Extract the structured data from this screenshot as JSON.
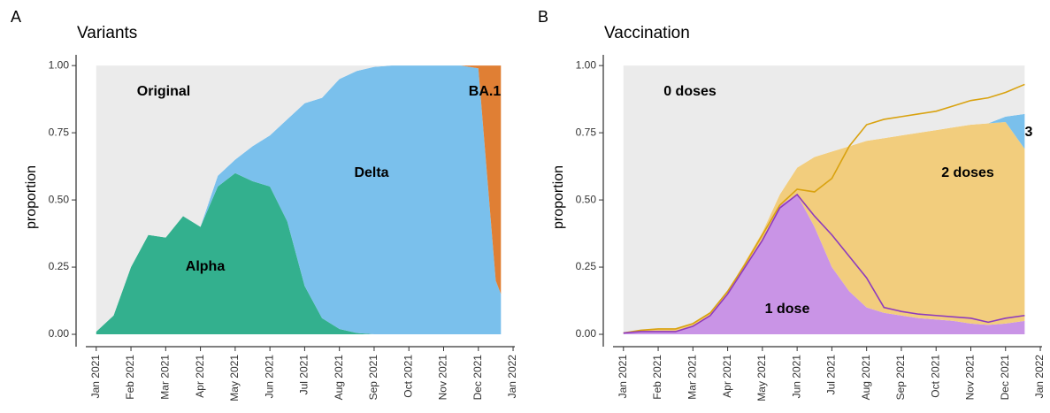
{
  "chart_data": [
    {
      "type": "area",
      "stacked": true,
      "panel": "A",
      "title": "Variants",
      "ylabel": "proportion",
      "x": [
        0,
        0.5,
        1,
        1.5,
        2,
        2.5,
        3,
        3.5,
        4,
        4.5,
        5,
        5.5,
        6,
        6.5,
        7,
        7.5,
        8,
        8.5,
        9,
        9.5,
        10,
        10.5,
        11,
        11.5,
        11.65
      ],
      "series": [
        {
          "name": "Alpha",
          "color": "#33b08e",
          "values": [
            0.01,
            0.07,
            0.25,
            0.37,
            0.36,
            0.44,
            0.4,
            0.55,
            0.6,
            0.57,
            0.55,
            0.42,
            0.18,
            0.06,
            0.02,
            0.005,
            0,
            0,
            0,
            0,
            0,
            0,
            0,
            0,
            0
          ]
        },
        {
          "name": "Delta",
          "color": "#7ac0ec",
          "values": [
            0,
            0,
            0,
            0,
            0,
            0,
            0,
            0.04,
            0.05,
            0.13,
            0.19,
            0.38,
            0.68,
            0.82,
            0.93,
            0.975,
            0.995,
            1,
            1,
            1,
            1,
            1,
            0.99,
            0.2,
            0.15
          ]
        },
        {
          "name": "BA.1",
          "color": "#e07f34",
          "values": [
            0,
            0,
            0,
            0,
            0,
            0,
            0,
            0,
            0,
            0,
            0,
            0,
            0,
            0,
            0,
            0,
            0,
            0,
            0,
            0,
            0,
            0,
            0.01,
            0.8,
            0.85
          ]
        },
        {
          "name": "Original",
          "color": "#ebebeb",
          "values": [
            0.99,
            0.93,
            0.75,
            0.63,
            0.64,
            0.56,
            0.6,
            0.41,
            0.35,
            0.3,
            0.26,
            0.2,
            0.14,
            0.12,
            0.05,
            0.02,
            0.005,
            0,
            0,
            0,
            0,
            0,
            0,
            0,
            0
          ]
        }
      ],
      "xlim": [
        -0.3,
        12.05
      ],
      "xticks": [
        {
          "value": 0,
          "label": "Jan 2021"
        },
        {
          "value": 1,
          "label": "Feb 2021"
        },
        {
          "value": 2,
          "label": "Mar 2021"
        },
        {
          "value": 3,
          "label": "Apr 2021"
        },
        {
          "value": 4,
          "label": "May 2021"
        },
        {
          "value": 5,
          "label": "Jun 2021"
        },
        {
          "value": 6,
          "label": "Jul 2021"
        },
        {
          "value": 7,
          "label": "Aug 2021"
        },
        {
          "value": 8,
          "label": "Sep 2021"
        },
        {
          "value": 9,
          "label": "Oct 2021"
        },
        {
          "value": 10,
          "label": "Nov 2021"
        },
        {
          "value": 11,
          "label": "Dec 2021"
        },
        {
          "value": 12,
          "label": "Jan 2022"
        }
      ],
      "ylim": [
        -0.046,
        1.04
      ],
      "yticks": [
        {
          "value": 0,
          "label": "0.00"
        },
        {
          "value": 0.25,
          "label": "0.25"
        },
        {
          "value": 0.5,
          "label": "0.50"
        },
        {
          "value": 0.75,
          "label": "0.75"
        },
        {
          "value": 1,
          "label": "1.00"
        }
      ]
    },
    {
      "type": "area",
      "stacked": true,
      "panel": "B",
      "title": "Vaccination",
      "ylabel": "proportion",
      "x": [
        0,
        0.5,
        1,
        1.5,
        2,
        2.5,
        3,
        3.5,
        4,
        4.5,
        5,
        5.5,
        6,
        6.5,
        7,
        7.5,
        8,
        8.5,
        9,
        9.5,
        10,
        10.5,
        11,
        11.55
      ],
      "series": [
        {
          "name": "1 dose",
          "color": "#c994e6",
          "values": [
            0.005,
            0.01,
            0.01,
            0.01,
            0.03,
            0.07,
            0.15,
            0.25,
            0.35,
            0.48,
            0.52,
            0.4,
            0.25,
            0.16,
            0.1,
            0.08,
            0.07,
            0.06,
            0.055,
            0.05,
            0.04,
            0.035,
            0.04,
            0.05
          ]
        },
        {
          "name": "2 doses",
          "color": "#f2cd7d",
          "values": [
            0,
            0.005,
            0.01,
            0.01,
            0.01,
            0.01,
            0.01,
            0.02,
            0.03,
            0.04,
            0.1,
            0.26,
            0.43,
            0.54,
            0.62,
            0.65,
            0.67,
            0.69,
            0.705,
            0.72,
            0.74,
            0.75,
            0.75,
            0.64
          ]
        },
        {
          "name": "3",
          "color": "#7ac0ec",
          "values": [
            0,
            0,
            0,
            0,
            0,
            0,
            0,
            0,
            0,
            0,
            0,
            0,
            0,
            0,
            0,
            0,
            0,
            0,
            0,
            0,
            0,
            0,
            0.02,
            0.13
          ]
        },
        {
          "name": "0 doses",
          "color": "#ebebeb",
          "values": [
            0.995,
            0.985,
            0.98,
            0.98,
            0.96,
            0.92,
            0.84,
            0.73,
            0.62,
            0.48,
            0.38,
            0.34,
            0.32,
            0.3,
            0.28,
            0.27,
            0.26,
            0.25,
            0.24,
            0.23,
            0.22,
            0.215,
            0.19,
            0.18
          ]
        },
        {
          "kind": "line",
          "color": "#d9a20f",
          "values": [
            0.005,
            0.015,
            0.02,
            0.02,
            0.04,
            0.08,
            0.16,
            0.26,
            0.37,
            0.48,
            0.54,
            0.53,
            0.58,
            0.7,
            0.78,
            0.8,
            0.81,
            0.82,
            0.83,
            0.85,
            0.87,
            0.88,
            0.9,
            0.93
          ]
        },
        {
          "kind": "line",
          "color": "#8e3bbd",
          "values": [
            0.005,
            0.01,
            0.01,
            0.01,
            0.03,
            0.07,
            0.15,
            0.25,
            0.35,
            0.47,
            0.52,
            0.44,
            0.37,
            0.29,
            0.21,
            0.1,
            0.085,
            0.075,
            0.07,
            0.065,
            0.06,
            0.045,
            0.06,
            0.07
          ]
        }
      ],
      "xlim": [
        -0.3,
        12.05
      ],
      "xticks": [
        {
          "value": 0,
          "label": "Jan 2021"
        },
        {
          "value": 1,
          "label": "Feb 2021"
        },
        {
          "value": 2,
          "label": "Mar 2021"
        },
        {
          "value": 3,
          "label": "Apr 2021"
        },
        {
          "value": 4,
          "label": "May 2021"
        },
        {
          "value": 5,
          "label": "Jun 2021"
        },
        {
          "value": 6,
          "label": "Jul 2021"
        },
        {
          "value": 7,
          "label": "Aug 2021"
        },
        {
          "value": 8,
          "label": "Sep 2021"
        },
        {
          "value": 9,
          "label": "Oct 2021"
        },
        {
          "value": 10,
          "label": "Nov 2021"
        },
        {
          "value": 11,
          "label": "Dec 2021"
        },
        {
          "value": 12,
          "label": "Jan 2022"
        }
      ],
      "ylim": [
        -0.046,
        1.04
      ],
      "yticks": [
        {
          "value": 0,
          "label": "0.00"
        },
        {
          "value": 0.25,
          "label": "0.25"
        },
        {
          "value": 0.5,
          "label": "0.50"
        },
        {
          "value": 0.75,
          "label": "0.75"
        },
        {
          "value": 1,
          "label": "1.00"
        }
      ]
    }
  ]
}
